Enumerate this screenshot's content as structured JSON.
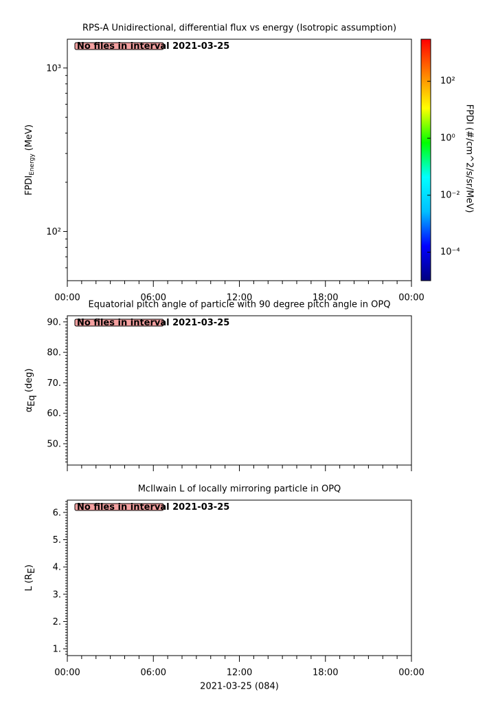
{
  "chart_data": [
    {
      "type": "spectrogram",
      "title": "RPS-A Unidirectional, differential flux vs energy (Isotropic assumption)",
      "annotation": "No files in interval 2021-03-25",
      "ylabel": {
        "text": "FPDI",
        "sub": "Energy",
        "tail": " (MeV)"
      },
      "log_y": true,
      "ylim": [
        50,
        1500
      ],
      "yticks": [
        {
          "value": 100,
          "label": "10²"
        },
        {
          "value": 1000,
          "label": "10³"
        }
      ],
      "yminorticks": [
        60,
        70,
        80,
        90,
        200,
        300,
        400,
        500,
        600,
        700,
        800,
        900
      ],
      "xlim": [
        0,
        24
      ],
      "xticks": [
        {
          "value": 0,
          "label": "00:00"
        },
        {
          "value": 6,
          "label": "06:00"
        },
        {
          "value": 12,
          "label": "12:00"
        },
        {
          "value": 18,
          "label": "18:00"
        },
        {
          "value": 24,
          "label": "00:00"
        }
      ],
      "xminorticks": [
        1,
        2,
        3,
        4,
        5,
        7,
        8,
        9,
        10,
        11,
        13,
        14,
        15,
        16,
        17,
        19,
        20,
        21,
        22,
        23
      ],
      "colorbar": {
        "label": "FPDI (#/cm^2/s/sr/MeV)",
        "log": true,
        "lim": [
          1e-05,
          3000
        ],
        "ticks": [
          {
            "value": 0.0001,
            "label": "10⁻⁴"
          },
          {
            "value": 0.01,
            "label": "10⁻²"
          },
          {
            "value": 1,
            "label": "10⁰"
          },
          {
            "value": 100,
            "label": "10²"
          }
        ],
        "colors": [
          "#00007f",
          "#0000ff",
          "#00bfff",
          "#00ffff",
          "#00ff00",
          "#ffff00",
          "#ff8000",
          "#ff0000"
        ]
      }
    },
    {
      "type": "line",
      "title": "Equatorial pitch angle of particle with 90 degree pitch angle in OPQ",
      "annotation": "No files in interval 2021-03-25",
      "ylabel": {
        "text": "α",
        "sub": "Eq",
        "tail": " (deg)"
      },
      "ylim": [
        43,
        92
      ],
      "yticks": [
        {
          "value": 50,
          "label": "50."
        },
        {
          "value": 60,
          "label": "60."
        },
        {
          "value": 70,
          "label": "70."
        },
        {
          "value": 80,
          "label": "80."
        },
        {
          "value": 90,
          "label": "90."
        }
      ],
      "yminorticks": [
        44,
        45,
        46,
        47,
        48,
        49,
        51,
        52,
        53,
        54,
        55,
        56,
        57,
        58,
        59,
        61,
        62,
        63,
        64,
        65,
        66,
        67,
        68,
        69,
        71,
        72,
        73,
        74,
        75,
        76,
        77,
        78,
        79,
        81,
        82,
        83,
        84,
        85,
        86,
        87,
        88,
        89,
        91
      ],
      "xlim": [
        0,
        24
      ],
      "xticks": [
        0,
        6,
        12,
        18,
        24
      ],
      "xminorticks": [
        1,
        2,
        3,
        4,
        5,
        7,
        8,
        9,
        10,
        11,
        13,
        14,
        15,
        16,
        17,
        19,
        20,
        21,
        22,
        23
      ]
    },
    {
      "type": "line",
      "title": "McIlwain L of locally mirroring particle in OPQ",
      "annotation": "No files in interval 2021-03-25",
      "ylabel": {
        "text": "L (R",
        "sub": "E",
        "tail": ")"
      },
      "ylim": [
        0.75,
        6.45
      ],
      "yticks": [
        {
          "value": 1,
          "label": "1."
        },
        {
          "value": 2,
          "label": "2."
        },
        {
          "value": 3,
          "label": "3."
        },
        {
          "value": 4,
          "label": "4."
        },
        {
          "value": 5,
          "label": "5."
        },
        {
          "value": 6,
          "label": "6."
        }
      ],
      "yminorticks": [
        0.8,
        0.9,
        1.1,
        1.2,
        1.3,
        1.4,
        1.5,
        1.6,
        1.7,
        1.8,
        1.9,
        2.1,
        2.2,
        2.3,
        2.4,
        2.5,
        2.6,
        2.7,
        2.8,
        2.9,
        3.1,
        3.2,
        3.3,
        3.4,
        3.5,
        3.6,
        3.7,
        3.8,
        3.9,
        4.1,
        4.2,
        4.3,
        4.4,
        4.5,
        4.6,
        4.7,
        4.8,
        4.9,
        5.1,
        5.2,
        5.3,
        5.4,
        5.5,
        5.6,
        5.7,
        5.8,
        5.9,
        6.1,
        6.2,
        6.3,
        6.4
      ],
      "xlim": [
        0,
        24
      ],
      "xticks": [
        {
          "value": 0,
          "label": "00:00"
        },
        {
          "value": 6,
          "label": "06:00"
        },
        {
          "value": 12,
          "label": "12:00"
        },
        {
          "value": 18,
          "label": "18:00"
        },
        {
          "value": 24,
          "label": "00:00"
        }
      ],
      "xminorticks": [
        1,
        2,
        3,
        4,
        5,
        7,
        8,
        9,
        10,
        11,
        13,
        14,
        15,
        16,
        17,
        19,
        20,
        21,
        22,
        23
      ],
      "xlabel": "2021-03-25 (084)"
    }
  ]
}
